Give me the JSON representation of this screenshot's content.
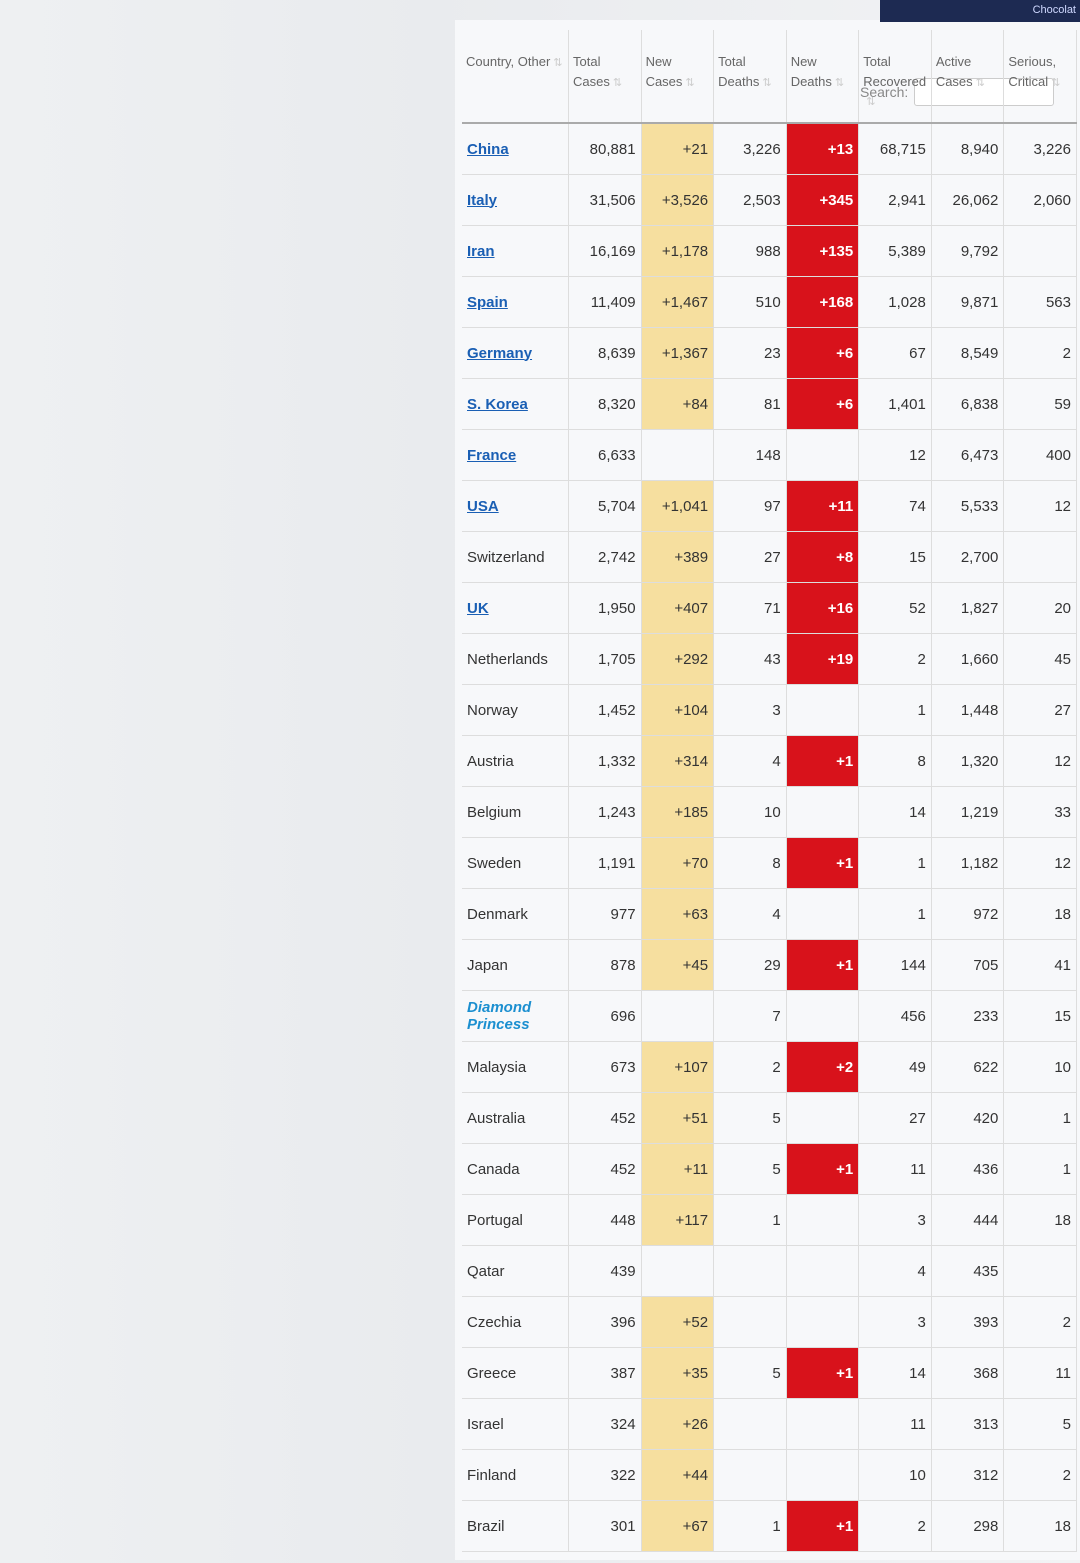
{
  "browser": {
    "tab_fragment": "Chocolat"
  },
  "search": {
    "label": "Search:",
    "value": ""
  },
  "columns": [
    "Country, Other",
    "Total Cases",
    "New Cases",
    "Total Deaths",
    "New Deaths",
    "Total Recovered",
    "Active Cases",
    "Serious, Critical"
  ],
  "colors": {
    "new_cases_bg": "#f6df9f",
    "new_deaths_bg": "#d8121b",
    "link": "#1a5fb4"
  },
  "rows": [
    {
      "country": "China",
      "link": true,
      "total": "80,881",
      "new": "+21",
      "deaths": "3,226",
      "new_deaths": "+13",
      "recovered": "68,715",
      "active": "8,940",
      "serious": "3,226"
    },
    {
      "country": "Italy",
      "link": true,
      "total": "31,506",
      "new": "+3,526",
      "deaths": "2,503",
      "new_deaths": "+345",
      "recovered": "2,941",
      "active": "26,062",
      "serious": "2,060"
    },
    {
      "country": "Iran",
      "link": true,
      "total": "16,169",
      "new": "+1,178",
      "deaths": "988",
      "new_deaths": "+135",
      "recovered": "5,389",
      "active": "9,792",
      "serious": ""
    },
    {
      "country": "Spain",
      "link": true,
      "total": "11,409",
      "new": "+1,467",
      "deaths": "510",
      "new_deaths": "+168",
      "recovered": "1,028",
      "active": "9,871",
      "serious": "563"
    },
    {
      "country": "Germany",
      "link": true,
      "total": "8,639",
      "new": "+1,367",
      "deaths": "23",
      "new_deaths": "+6",
      "recovered": "67",
      "active": "8,549",
      "serious": "2"
    },
    {
      "country": "S. Korea",
      "link": true,
      "total": "8,320",
      "new": "+84",
      "deaths": "81",
      "new_deaths": "+6",
      "recovered": "1,401",
      "active": "6,838",
      "serious": "59"
    },
    {
      "country": "France",
      "link": true,
      "total": "6,633",
      "new": "",
      "deaths": "148",
      "new_deaths": "",
      "recovered": "12",
      "active": "6,473",
      "serious": "400"
    },
    {
      "country": "USA",
      "link": true,
      "total": "5,704",
      "new": "+1,041",
      "deaths": "97",
      "new_deaths": "+11",
      "recovered": "74",
      "active": "5,533",
      "serious": "12"
    },
    {
      "country": "Switzerland",
      "link": false,
      "total": "2,742",
      "new": "+389",
      "deaths": "27",
      "new_deaths": "+8",
      "recovered": "15",
      "active": "2,700",
      "serious": ""
    },
    {
      "country": "UK",
      "link": true,
      "total": "1,950",
      "new": "+407",
      "deaths": "71",
      "new_deaths": "+16",
      "recovered": "52",
      "active": "1,827",
      "serious": "20"
    },
    {
      "country": "Netherlands",
      "link": false,
      "total": "1,705",
      "new": "+292",
      "deaths": "43",
      "new_deaths": "+19",
      "recovered": "2",
      "active": "1,660",
      "serious": "45"
    },
    {
      "country": "Norway",
      "link": false,
      "total": "1,452",
      "new": "+104",
      "deaths": "3",
      "new_deaths": "",
      "recovered": "1",
      "active": "1,448",
      "serious": "27"
    },
    {
      "country": "Austria",
      "link": false,
      "total": "1,332",
      "new": "+314",
      "deaths": "4",
      "new_deaths": "+1",
      "recovered": "8",
      "active": "1,320",
      "serious": "12"
    },
    {
      "country": "Belgium",
      "link": false,
      "total": "1,243",
      "new": "+185",
      "deaths": "10",
      "new_deaths": "",
      "recovered": "14",
      "active": "1,219",
      "serious": "33"
    },
    {
      "country": "Sweden",
      "link": false,
      "total": "1,191",
      "new": "+70",
      "deaths": "8",
      "new_deaths": "+1",
      "recovered": "1",
      "active": "1,182",
      "serious": "12"
    },
    {
      "country": "Denmark",
      "link": false,
      "total": "977",
      "new": "+63",
      "deaths": "4",
      "new_deaths": "",
      "recovered": "1",
      "active": "972",
      "serious": "18"
    },
    {
      "country": "Japan",
      "link": false,
      "total": "878",
      "new": "+45",
      "deaths": "29",
      "new_deaths": "+1",
      "recovered": "144",
      "active": "705",
      "serious": "41"
    },
    {
      "country": "Diamond Princess",
      "link": true,
      "total": "696",
      "new": "",
      "deaths": "7",
      "new_deaths": "",
      "recovered": "456",
      "active": "233",
      "serious": "15"
    },
    {
      "country": "Malaysia",
      "link": false,
      "total": "673",
      "new": "+107",
      "deaths": "2",
      "new_deaths": "+2",
      "recovered": "49",
      "active": "622",
      "serious": "10"
    },
    {
      "country": "Australia",
      "link": false,
      "total": "452",
      "new": "+51",
      "deaths": "5",
      "new_deaths": "",
      "recovered": "27",
      "active": "420",
      "serious": "1"
    },
    {
      "country": "Canada",
      "link": false,
      "total": "452",
      "new": "+11",
      "deaths": "5",
      "new_deaths": "+1",
      "recovered": "11",
      "active": "436",
      "serious": "1"
    },
    {
      "country": "Portugal",
      "link": false,
      "total": "448",
      "new": "+117",
      "deaths": "1",
      "new_deaths": "",
      "recovered": "3",
      "active": "444",
      "serious": "18"
    },
    {
      "country": "Qatar",
      "link": false,
      "total": "439",
      "new": "",
      "deaths": "",
      "new_deaths": "",
      "recovered": "4",
      "active": "435",
      "serious": ""
    },
    {
      "country": "Czechia",
      "link": false,
      "total": "396",
      "new": "+52",
      "deaths": "",
      "new_deaths": "",
      "recovered": "3",
      "active": "393",
      "serious": "2"
    },
    {
      "country": "Greece",
      "link": false,
      "total": "387",
      "new": "+35",
      "deaths": "5",
      "new_deaths": "+1",
      "recovered": "14",
      "active": "368",
      "serious": "11"
    },
    {
      "country": "Israel",
      "link": false,
      "total": "324",
      "new": "+26",
      "deaths": "",
      "new_deaths": "",
      "recovered": "11",
      "active": "313",
      "serious": "5"
    },
    {
      "country": "Finland",
      "link": false,
      "total": "322",
      "new": "+44",
      "deaths": "",
      "new_deaths": "",
      "recovered": "10",
      "active": "312",
      "serious": "2"
    },
    {
      "country": "Brazil",
      "link": false,
      "total": "301",
      "new": "+67",
      "deaths": "1",
      "new_deaths": "+1",
      "recovered": "2",
      "active": "298",
      "serious": "18"
    }
  ]
}
